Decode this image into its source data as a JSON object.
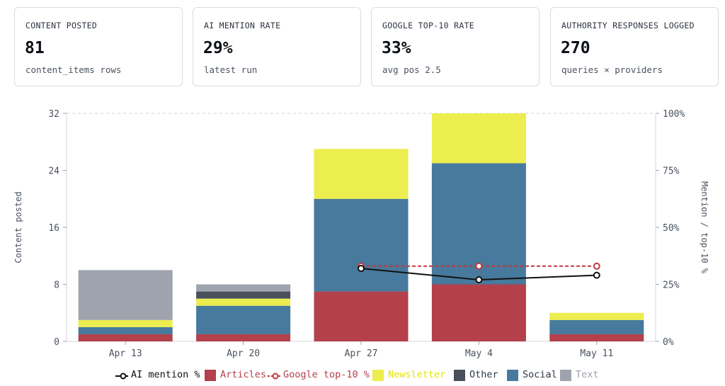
{
  "cards": [
    {
      "label": "CONTENT POSTED",
      "value": "81",
      "sub": "content_items rows"
    },
    {
      "label": "AI MENTION RATE",
      "value": "29%",
      "sub": "latest run"
    },
    {
      "label": "GOOGLE TOP-10 RATE",
      "value": "33%",
      "sub": "avg pos 2.5"
    },
    {
      "label": "AUTHORITY RESPONSES LOGGED",
      "value": "270",
      "sub": "queries × providers"
    }
  ],
  "chart_data": {
    "type": "bar",
    "stacked": true,
    "categories": [
      "Apr 13",
      "Apr 20",
      "Apr 27",
      "May 4",
      "May 11"
    ],
    "series": [
      {
        "name": "Articles",
        "color": "#b3404a",
        "values": [
          1,
          1,
          7,
          8,
          1
        ]
      },
      {
        "name": "Social",
        "color": "#477a9c",
        "values": [
          1,
          4,
          13,
          17,
          2
        ]
      },
      {
        "name": "Newsletter",
        "color": "#eced4e",
        "values": [
          1,
          1,
          7,
          7,
          1
        ]
      },
      {
        "name": "Other",
        "color": "#4a505c",
        "values": [
          0,
          1,
          0,
          0,
          0
        ]
      },
      {
        "name": "Text",
        "color": "#9ea3ad",
        "values": [
          7,
          1,
          0,
          0,
          0
        ]
      }
    ],
    "lines": [
      {
        "name": "AI mention %",
        "color": "#111111",
        "dashed": false,
        "values": [
          null,
          null,
          32,
          27,
          29
        ]
      },
      {
        "name": "Google top-10 %",
        "color": "#c0393f",
        "dashed": true,
        "values": [
          null,
          null,
          33,
          33,
          33
        ]
      }
    ],
    "ylabel": "Content posted",
    "ylabel_right": "Mention / top-10 %",
    "ylim": [
      0,
      32
    ],
    "yticks": [
      "0",
      "8",
      "16",
      "24",
      "32"
    ],
    "ylim_right": [
      0,
      100
    ],
    "yticks_right": [
      "0%",
      "25%",
      "50%",
      "75%",
      "100%"
    ],
    "legend_position": "bottom",
    "legend": [
      {
        "name": "AI mention %",
        "kind": "line",
        "color": "#111111"
      },
      {
        "name": "Articles",
        "kind": "box",
        "color": "#b3404a"
      },
      {
        "name": "Google top-10 %",
        "kind": "dashline",
        "color": "#c0393f"
      },
      {
        "name": "Newsletter",
        "kind": "box",
        "color": "#eced4e"
      },
      {
        "name": "Other",
        "kind": "box",
        "color": "#4a505c"
      },
      {
        "name": "Social",
        "kind": "box",
        "color": "#477a9c"
      },
      {
        "name": "Text",
        "kind": "box",
        "color": "#9ea3ad"
      }
    ]
  }
}
